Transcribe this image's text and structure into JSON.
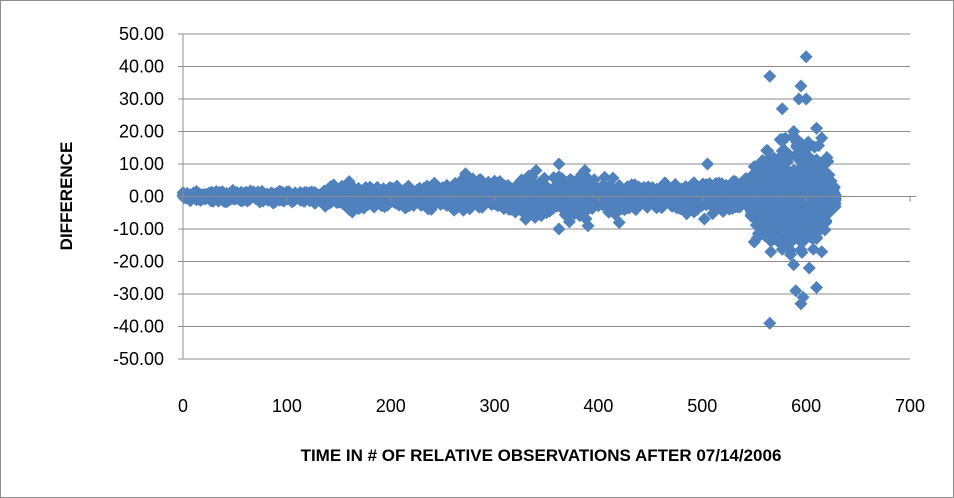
{
  "chart_data": {
    "type": "scatter",
    "title": "",
    "xlabel": "TIME IN  # OF RELATIVE OBSERVATIONS AFTER 07/14/2006",
    "ylabel": "DIFFERENCE",
    "xlim": [
      0,
      700
    ],
    "ylim": [
      -50,
      50
    ],
    "x_ticks": [
      "0",
      "100",
      "200",
      "300",
      "400",
      "500",
      "600",
      "700"
    ],
    "y_ticks": [
      "50.00",
      "40.00",
      "30.00",
      "20.00",
      "10.00",
      "0.00",
      "-10.00",
      "-20.00",
      "-30.00",
      "-40.00",
      "-50.00"
    ],
    "grid": "horizontal",
    "legend": "none",
    "marker": "diamond",
    "marker_color": "#4f81bd",
    "envelope": [
      [
        0,
        1.5
      ],
      [
        50,
        1.5
      ],
      [
        100,
        1.5
      ],
      [
        130,
        1.8
      ],
      [
        140,
        3
      ],
      [
        160,
        4
      ],
      [
        200,
        3
      ],
      [
        250,
        3.5
      ],
      [
        270,
        6
      ],
      [
        300,
        4
      ],
      [
        320,
        6
      ],
      [
        340,
        7
      ],
      [
        360,
        6
      ],
      [
        380,
        7
      ],
      [
        400,
        5
      ],
      [
        420,
        5
      ],
      [
        440,
        3
      ],
      [
        480,
        4
      ],
      [
        500,
        6
      ],
      [
        530,
        4
      ],
      [
        545,
        6
      ],
      [
        555,
        12
      ],
      [
        570,
        15
      ],
      [
        590,
        17
      ],
      [
        610,
        14
      ],
      [
        620,
        10
      ],
      [
        628,
        3
      ]
    ],
    "outliers": [
      {
        "x": 600,
        "y": 43
      },
      {
        "x": 565,
        "y": 37
      },
      {
        "x": 595,
        "y": 34
      },
      {
        "x": 593,
        "y": 30
      },
      {
        "x": 600,
        "y": 30
      },
      {
        "x": 577,
        "y": 27
      },
      {
        "x": 610,
        "y": 21
      },
      {
        "x": 588,
        "y": 20
      },
      {
        "x": 615,
        "y": 18
      },
      {
        "x": 620,
        "y": 12
      },
      {
        "x": 505,
        "y": 10
      },
      {
        "x": 362,
        "y": 10
      },
      {
        "x": 387,
        "y": 8
      },
      {
        "x": 272,
        "y": 7
      },
      {
        "x": 340,
        "y": 8
      },
      {
        "x": 160,
        "y": 4
      },
      {
        "x": 142,
        "y": 3
      },
      {
        "x": 565,
        "y": -39
      },
      {
        "x": 595,
        "y": -33
      },
      {
        "x": 597,
        "y": -31
      },
      {
        "x": 590,
        "y": -29
      },
      {
        "x": 610,
        "y": -28
      },
      {
        "x": 603,
        "y": -22
      },
      {
        "x": 588,
        "y": -21
      },
      {
        "x": 566,
        "y": -17
      },
      {
        "x": 615,
        "y": -17
      },
      {
        "x": 550,
        "y": -14
      },
      {
        "x": 362,
        "y": -10
      },
      {
        "x": 420,
        "y": -8
      },
      {
        "x": 390,
        "y": -9
      },
      {
        "x": 330,
        "y": -7
      },
      {
        "x": 160,
        "y": -4
      }
    ]
  }
}
